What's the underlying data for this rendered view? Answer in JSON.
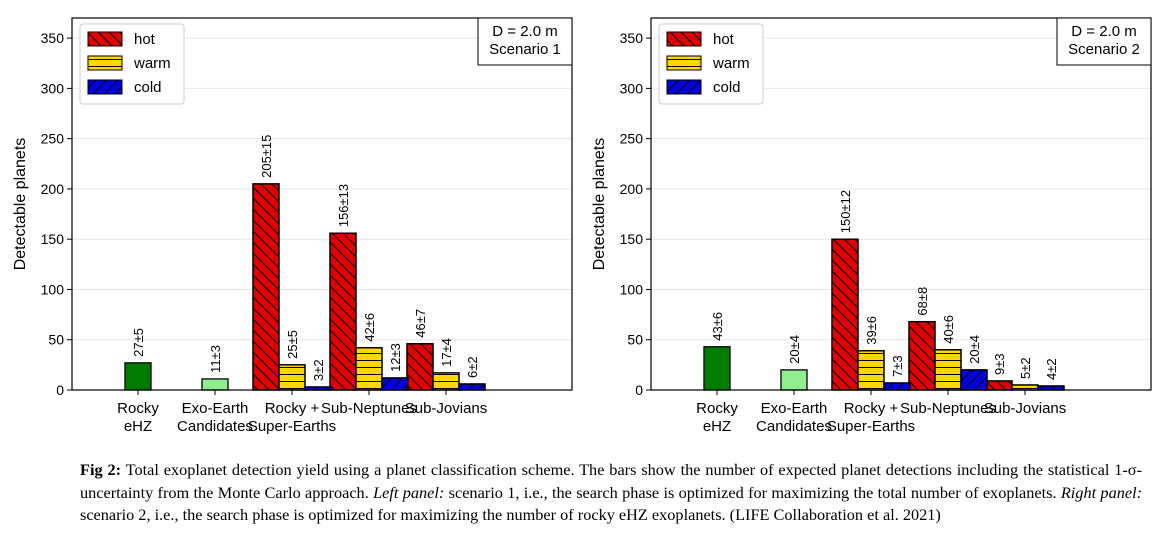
{
  "chart_data": [
    {
      "type": "bar",
      "categories": [
        [
          "Rocky",
          "eHZ"
        ],
        [
          "Exo-Earth",
          "Candidates"
        ],
        [
          "Rocky +",
          "Super-Earths"
        ],
        [
          "Sub-Neptunes"
        ],
        [
          "Sub-Jovians"
        ]
      ],
      "ylabel": "Detectable planets",
      "ylim": [
        0,
        370
      ],
      "yticks": [
        0,
        50,
        100,
        150,
        200,
        250,
        300,
        350
      ],
      "grid": true,
      "legend_position": "top-left",
      "info_box": [
        "D = 2.0 m",
        "Scenario 1"
      ],
      "series": [
        {
          "name": "hot",
          "color": "#e00000",
          "hatch": "diagonal-backslash",
          "values": [
            null,
            null,
            205,
            156,
            46
          ],
          "labels": [
            null,
            null,
            "205±15",
            "156±13",
            "46±7"
          ]
        },
        {
          "name": "warm",
          "color": "#ffd700",
          "hatch": "horizontal",
          "values": [
            null,
            null,
            25,
            42,
            17
          ],
          "labels": [
            null,
            null,
            "25±5",
            "42±6",
            "17±4"
          ]
        },
        {
          "name": "cold",
          "color": "#0000e0",
          "hatch": "diagonal-slash",
          "values": [
            null,
            null,
            3,
            12,
            6
          ],
          "labels": [
            null,
            null,
            "3±2",
            "12±3",
            "6±2"
          ]
        }
      ],
      "single_bars": [
        {
          "category_index": 0,
          "value": 27,
          "label": "27±5",
          "color": "#007c00"
        },
        {
          "category_index": 1,
          "value": 11,
          "label": "11±3",
          "color": "#90ee90"
        }
      ]
    },
    {
      "type": "bar",
      "categories": [
        [
          "Rocky",
          "eHZ"
        ],
        [
          "Exo-Earth",
          "Candidates"
        ],
        [
          "Rocky +",
          "Super-Earths"
        ],
        [
          "Sub-Neptunes"
        ],
        [
          "Sub-Jovians"
        ]
      ],
      "ylabel": "Detectable planets",
      "ylim": [
        0,
        370
      ],
      "yticks": [
        0,
        50,
        100,
        150,
        200,
        250,
        300,
        350
      ],
      "grid": true,
      "legend_position": "top-left",
      "info_box": [
        "D = 2.0 m",
        "Scenario 2"
      ],
      "series": [
        {
          "name": "hot",
          "color": "#e00000",
          "hatch": "diagonal-backslash",
          "values": [
            null,
            null,
            150,
            68,
            9
          ],
          "labels": [
            null,
            null,
            "150±12",
            "68±8",
            "9±3"
          ]
        },
        {
          "name": "warm",
          "color": "#ffd700",
          "hatch": "horizontal",
          "values": [
            null,
            null,
            39,
            40,
            5
          ],
          "labels": [
            null,
            null,
            "39±6",
            "40±6",
            "5±2"
          ]
        },
        {
          "name": "cold",
          "color": "#0000e0",
          "hatch": "diagonal-slash",
          "values": [
            null,
            null,
            7,
            20,
            4
          ],
          "labels": [
            null,
            null,
            "7±3",
            "20±4",
            "4±2"
          ]
        }
      ],
      "single_bars": [
        {
          "category_index": 0,
          "value": 43,
          "label": "43±6",
          "color": "#007c00"
        },
        {
          "category_index": 1,
          "value": 20,
          "label": "20±4",
          "color": "#90ee90"
        }
      ]
    }
  ],
  "caption": {
    "prefix": "Fig 2:",
    "text1": " Total exoplanet detection yield using a planet classification scheme. The bars show the number of expected planet detections including the statistical 1-σ-uncertainty from the Monte Carlo approach. ",
    "left_label": "Left panel:",
    "text2": " scenario 1, i.e., the search phase is optimized for maximizing the total number of exoplanets. ",
    "right_label": "Right panel:",
    "text3": " scenario 2, i.e., the search phase is optimized for maximizing the number of rocky eHZ exoplanets. (LIFE Collaboration et al. 2021)"
  }
}
